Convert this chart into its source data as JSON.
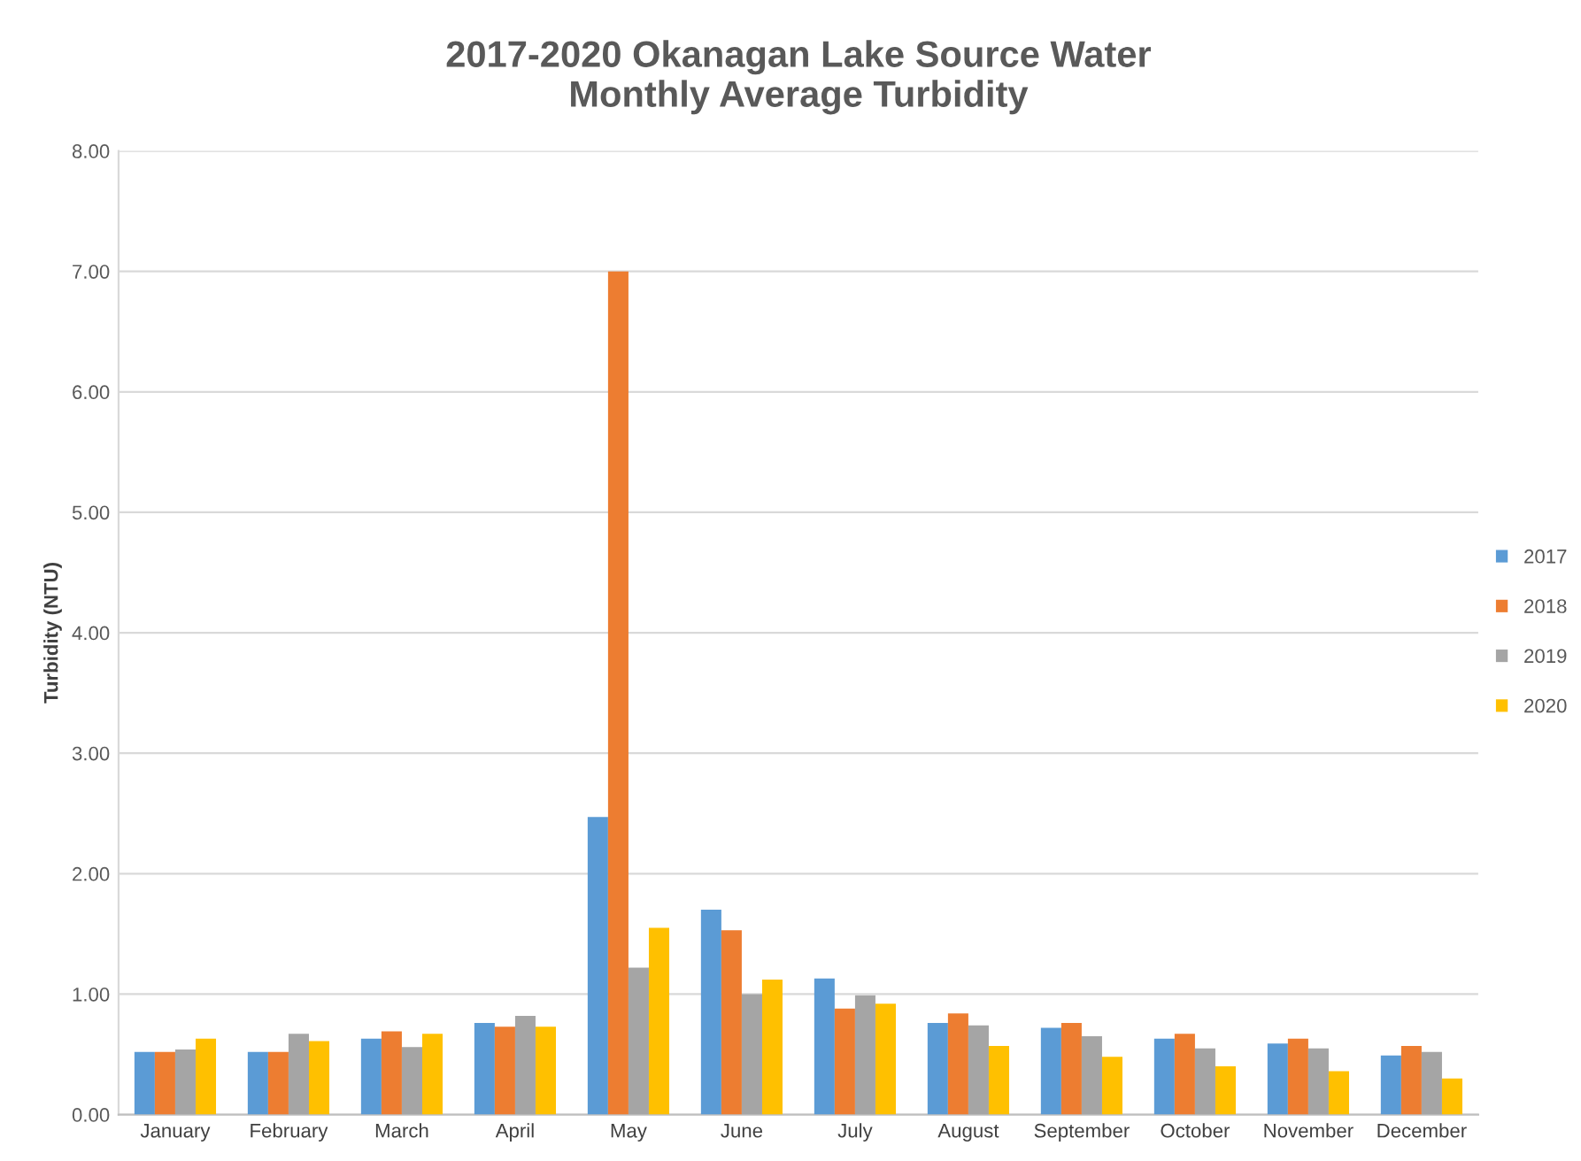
{
  "chart_data": {
    "type": "bar",
    "title": "2017-2020 Okanagan Lake Source Water\nMonthly Average Turbidity",
    "ylabel": "Turbidity (NTU)",
    "categories": [
      "January",
      "February",
      "March",
      "April",
      "May",
      "June",
      "July",
      "August",
      "September",
      "October",
      "November",
      "December"
    ],
    "series": [
      {
        "name": "2017",
        "color": "#5b9bd5",
        "values": [
          0.52,
          0.52,
          0.63,
          0.76,
          2.47,
          1.7,
          1.13,
          0.76,
          0.72,
          0.63,
          0.59,
          0.49
        ]
      },
      {
        "name": "2018",
        "color": "#ed7d31",
        "values": [
          0.52,
          0.52,
          0.69,
          0.73,
          7.0,
          1.53,
          0.88,
          0.84,
          0.76,
          0.67,
          0.63,
          0.57
        ]
      },
      {
        "name": "2019",
        "color": "#a5a5a5",
        "values": [
          0.54,
          0.67,
          0.56,
          0.82,
          1.22,
          1.0,
          0.99,
          0.74,
          0.65,
          0.55,
          0.55,
          0.52
        ]
      },
      {
        "name": "2020",
        "color": "#ffc000",
        "values": [
          0.63,
          0.61,
          0.67,
          0.73,
          1.55,
          1.12,
          0.92,
          0.57,
          0.48,
          0.4,
          0.36,
          0.3
        ]
      }
    ],
    "ylim": [
      0,
      8
    ],
    "yticks": [
      {
        "value": 0,
        "label": "0.00"
      },
      {
        "value": 1,
        "label": "1.00"
      },
      {
        "value": 2,
        "label": "2.00"
      },
      {
        "value": 3,
        "label": "3.00"
      },
      {
        "value": 4,
        "label": "4.00"
      },
      {
        "value": 5,
        "label": "5.00"
      },
      {
        "value": 6,
        "label": "6.00"
      },
      {
        "value": 7,
        "label": "7.00"
      },
      {
        "value": 8,
        "label": "8.00"
      }
    ],
    "grid": "y",
    "legend": "right"
  }
}
